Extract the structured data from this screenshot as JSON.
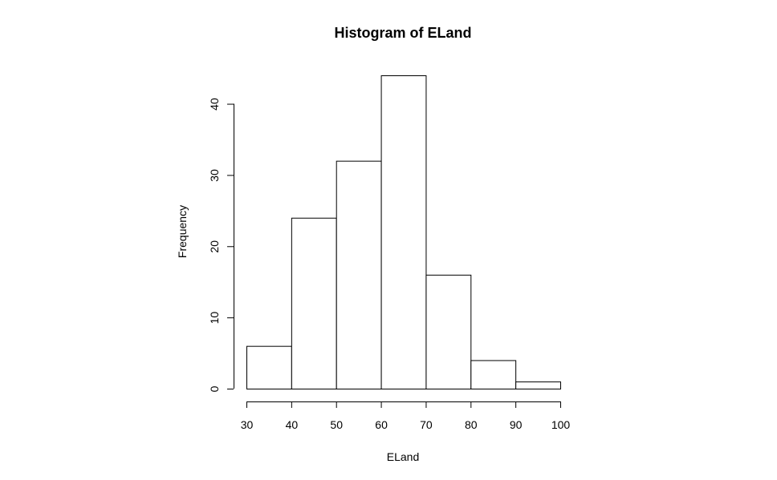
{
  "chart_data": {
    "type": "bar",
    "title": "Histogram of ELand",
    "xlabel": "ELand",
    "ylabel": "Frequency",
    "bins": [
      {
        "from": 30,
        "to": 40,
        "count": 6
      },
      {
        "from": 40,
        "to": 50,
        "count": 24
      },
      {
        "from": 50,
        "to": 60,
        "count": 32
      },
      {
        "from": 60,
        "to": 70,
        "count": 44
      },
      {
        "from": 70,
        "to": 80,
        "count": 16
      },
      {
        "from": 80,
        "to": 90,
        "count": 4
      },
      {
        "from": 90,
        "to": 100,
        "count": 1
      }
    ],
    "xlim": [
      30,
      100
    ],
    "ylim": [
      0,
      44
    ],
    "x_ticks": [
      "30",
      "40",
      "50",
      "60",
      "70",
      "80",
      "90",
      "100"
    ],
    "y_ticks": [
      "0",
      "10",
      "20",
      "30",
      "40"
    ],
    "grid": false,
    "legend": "none"
  }
}
